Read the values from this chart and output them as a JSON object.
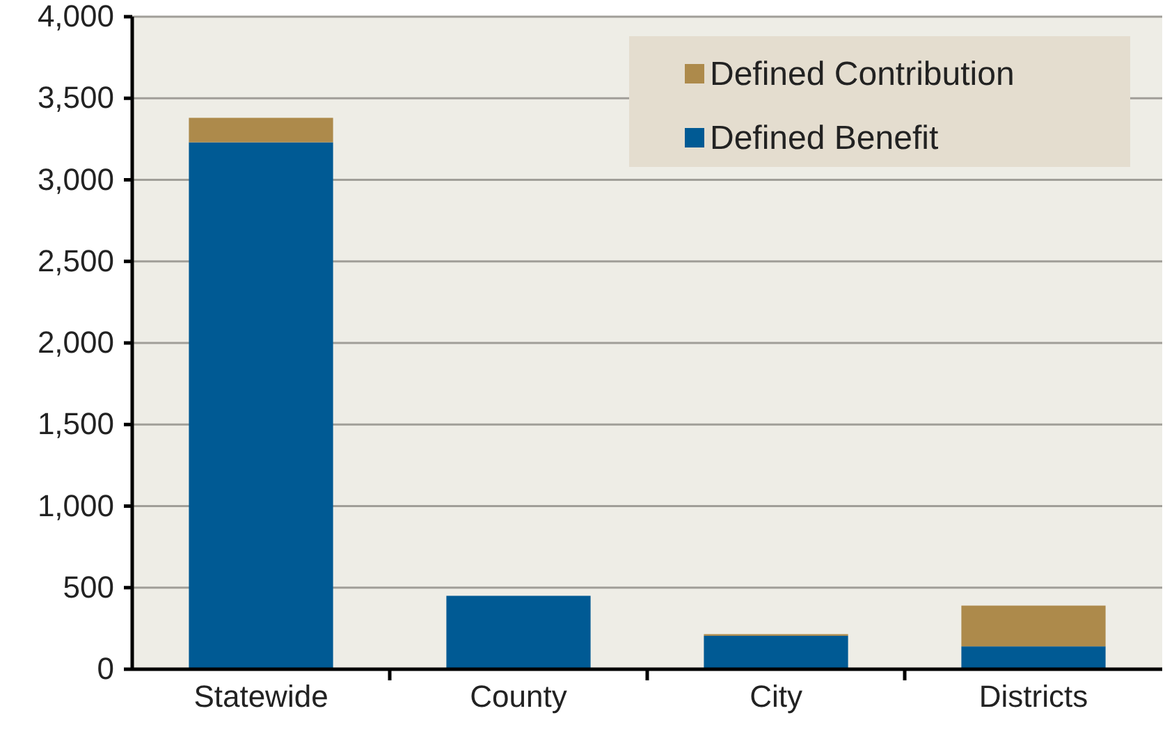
{
  "chart_data": {
    "type": "bar",
    "stacked": true,
    "categories": [
      "Statewide",
      "County",
      "City",
      "Districts"
    ],
    "series": [
      {
        "name": "Defined Benefit",
        "color": "#005a94",
        "values": [
          3230,
          450,
          205,
          140
        ]
      },
      {
        "name": "Defined Contribution",
        "color": "#ad8a4b",
        "values": [
          150,
          0,
          10,
          250
        ]
      }
    ],
    "ylim": [
      0,
      4000
    ],
    "yticks": [
      {
        "value": 0,
        "label": "0"
      },
      {
        "value": 500,
        "label": "500"
      },
      {
        "value": 1000,
        "label": "1,000"
      },
      {
        "value": 1500,
        "label": "1,500"
      },
      {
        "value": 2000,
        "label": "2,000"
      },
      {
        "value": 2500,
        "label": "2,500"
      },
      {
        "value": 3000,
        "label": "3,000"
      },
      {
        "value": 3500,
        "label": "3,500"
      },
      {
        "value": 4000,
        "label": "4,000"
      }
    ],
    "grid": "y",
    "legend": "top right"
  }
}
